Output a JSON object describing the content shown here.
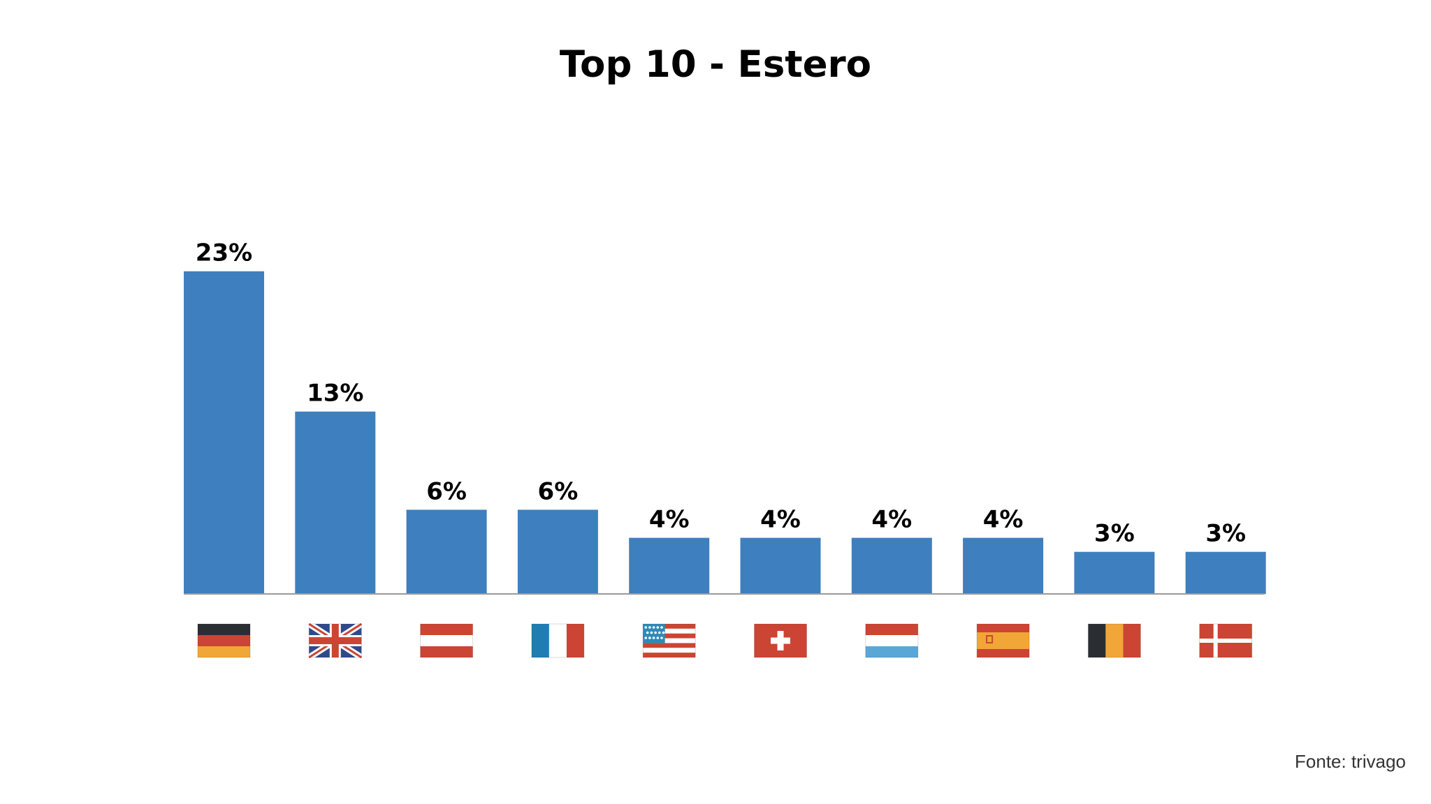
{
  "title": "Top 10 - Estero",
  "source": "Fonte: trivago",
  "colors": {
    "bar": "#3e7fbf",
    "axis": "#9a9a9a"
  },
  "chart_data": {
    "type": "bar",
    "title": "Top 10 - Estero",
    "categories": [
      "germany-flag",
      "united-kingdom-flag",
      "austria-flag",
      "france-flag",
      "united-states-flag",
      "switzerland-flag",
      "netherlands-flag",
      "spain-flag",
      "belgium-flag",
      "denmark-flag"
    ],
    "values": [
      23,
      13,
      6,
      6,
      4,
      4,
      4,
      4,
      3,
      3
    ],
    "labels": [
      "23%",
      "13%",
      "6%",
      "6%",
      "4%",
      "4%",
      "4%",
      "4%",
      "3%",
      "3%"
    ],
    "xlabel": "",
    "ylabel": "",
    "grid": false,
    "legend": "none"
  }
}
